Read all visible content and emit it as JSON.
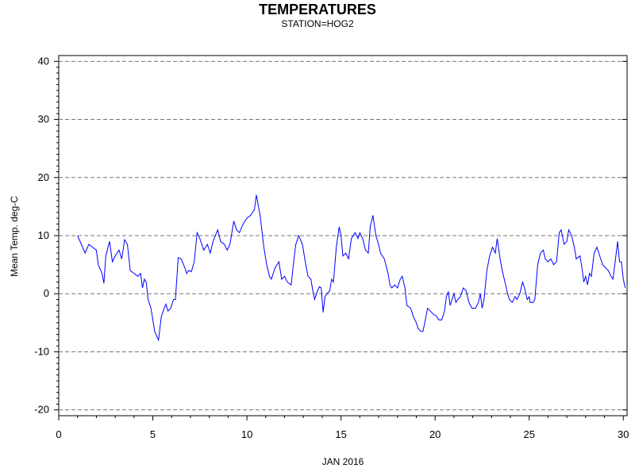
{
  "chart_data": {
    "type": "line",
    "title": "TEMPERATURES",
    "subtitle": "STATION=HOG2",
    "xlabel": "JAN 2016",
    "ylabel": "Mean Temp. deg-C",
    "xlim": [
      0,
      30.2
    ],
    "ylim": [
      -21,
      41
    ],
    "xticks": [
      0,
      5,
      10,
      15,
      20,
      25,
      30
    ],
    "yticks": [
      -20,
      -10,
      0,
      10,
      20,
      30,
      40
    ],
    "grid": "horizontal-dashed",
    "series": [
      {
        "color": "#0000ff",
        "points": [
          [
            1.0,
            10.0
          ],
          [
            1.2,
            8.5
          ],
          [
            1.4,
            7.0
          ],
          [
            1.6,
            8.5
          ],
          [
            1.8,
            8.0
          ],
          [
            2.0,
            7.5
          ],
          [
            2.1,
            5.0
          ],
          [
            2.3,
            3.5
          ],
          [
            2.4,
            1.8
          ],
          [
            2.5,
            6.5
          ],
          [
            2.7,
            9.0
          ],
          [
            2.85,
            5.5
          ],
          [
            3.0,
            6.5
          ],
          [
            3.2,
            7.5
          ],
          [
            3.35,
            6.0
          ],
          [
            3.5,
            9.3
          ],
          [
            3.65,
            8.5
          ],
          [
            3.8,
            4.0
          ],
          [
            4.0,
            3.5
          ],
          [
            4.2,
            3.0
          ],
          [
            4.35,
            3.5
          ],
          [
            4.45,
            1.0
          ],
          [
            4.55,
            2.5
          ],
          [
            4.65,
            2.0
          ],
          [
            4.75,
            -1.0
          ],
          [
            4.9,
            -2.5
          ],
          [
            5.1,
            -6.5
          ],
          [
            5.3,
            -8.0
          ],
          [
            5.45,
            -4.0
          ],
          [
            5.6,
            -2.5
          ],
          [
            5.7,
            -1.8
          ],
          [
            5.8,
            -3.0
          ],
          [
            5.95,
            -2.5
          ],
          [
            6.1,
            -1.0
          ],
          [
            6.2,
            -1.0
          ],
          [
            6.35,
            6.2
          ],
          [
            6.5,
            6.0
          ],
          [
            6.7,
            4.5
          ],
          [
            6.8,
            3.5
          ],
          [
            6.9,
            4.0
          ],
          [
            7.05,
            3.8
          ],
          [
            7.2,
            5.5
          ],
          [
            7.35,
            10.5
          ],
          [
            7.5,
            9.5
          ],
          [
            7.7,
            7.5
          ],
          [
            7.9,
            8.5
          ],
          [
            8.05,
            7.0
          ],
          [
            8.2,
            9.0
          ],
          [
            8.45,
            11.0
          ],
          [
            8.6,
            9.0
          ],
          [
            8.8,
            8.5
          ],
          [
            8.95,
            7.5
          ],
          [
            9.1,
            8.5
          ],
          [
            9.3,
            12.5
          ],
          [
            9.45,
            11.0
          ],
          [
            9.6,
            10.5
          ],
          [
            9.8,
            12.0
          ],
          [
            10.0,
            13.0
          ],
          [
            10.2,
            13.5
          ],
          [
            10.4,
            14.5
          ],
          [
            10.5,
            17.0
          ],
          [
            10.7,
            13.5
          ],
          [
            10.9,
            8.0
          ],
          [
            11.05,
            5.0
          ],
          [
            11.2,
            3.0
          ],
          [
            11.3,
            2.5
          ],
          [
            11.5,
            4.5
          ],
          [
            11.7,
            5.5
          ],
          [
            11.85,
            2.5
          ],
          [
            12.0,
            3.0
          ],
          [
            12.15,
            2.0
          ],
          [
            12.35,
            1.5
          ],
          [
            12.5,
            6.0
          ],
          [
            12.6,
            8.5
          ],
          [
            12.75,
            10.0
          ],
          [
            12.95,
            8.5
          ],
          [
            13.1,
            5.5
          ],
          [
            13.25,
            3.0
          ],
          [
            13.4,
            2.5
          ],
          [
            13.5,
            0.5
          ],
          [
            13.6,
            -1.0
          ],
          [
            13.75,
            0.5
          ],
          [
            13.85,
            1.2
          ],
          [
            13.95,
            1.0
          ],
          [
            14.05,
            -3.2
          ],
          [
            14.15,
            -0.5
          ],
          [
            14.25,
            0.0
          ],
          [
            14.4,
            0.5
          ],
          [
            14.5,
            2.5
          ],
          [
            14.6,
            2.0
          ],
          [
            14.75,
            8.0
          ],
          [
            14.9,
            11.5
          ],
          [
            15.0,
            10.0
          ],
          [
            15.1,
            6.5
          ],
          [
            15.25,
            7.0
          ],
          [
            15.4,
            6.0
          ],
          [
            15.55,
            9.5
          ],
          [
            15.75,
            10.5
          ],
          [
            15.9,
            9.5
          ],
          [
            16.0,
            10.5
          ],
          [
            16.15,
            9.5
          ],
          [
            16.3,
            7.5
          ],
          [
            16.45,
            7.0
          ],
          [
            16.55,
            11.5
          ],
          [
            16.7,
            13.5
          ],
          [
            16.85,
            10.0
          ],
          [
            16.95,
            9.0
          ],
          [
            17.1,
            7.0
          ],
          [
            17.3,
            6.0
          ],
          [
            17.5,
            3.5
          ],
          [
            17.6,
            1.5
          ],
          [
            17.7,
            1.0
          ],
          [
            17.85,
            1.5
          ],
          [
            18.0,
            1.0
          ],
          [
            18.15,
            2.5
          ],
          [
            18.25,
            3.0
          ],
          [
            18.4,
            1.0
          ],
          [
            18.5,
            -2.0
          ],
          [
            18.7,
            -2.5
          ],
          [
            18.85,
            -4.0
          ],
          [
            19.0,
            -5.0
          ],
          [
            19.1,
            -6.0
          ],
          [
            19.25,
            -6.5
          ],
          [
            19.35,
            -6.5
          ],
          [
            19.45,
            -5.0
          ],
          [
            19.6,
            -2.5
          ],
          [
            19.75,
            -3.0
          ],
          [
            19.9,
            -3.5
          ],
          [
            20.05,
            -3.8
          ],
          [
            20.2,
            -4.5
          ],
          [
            20.35,
            -4.5
          ],
          [
            20.5,
            -3.0
          ],
          [
            20.6,
            -0.5
          ],
          [
            20.7,
            0.3
          ],
          [
            20.8,
            -2.0
          ],
          [
            20.9,
            -1.0
          ],
          [
            21.0,
            0.0
          ],
          [
            21.1,
            -1.5
          ],
          [
            21.2,
            -1.0
          ],
          [
            21.35,
            -0.5
          ],
          [
            21.5,
            1.0
          ],
          [
            21.65,
            0.5
          ],
          [
            21.8,
            -1.5
          ],
          [
            21.95,
            -2.5
          ],
          [
            22.15,
            -2.5
          ],
          [
            22.3,
            -1.5
          ],
          [
            22.4,
            0.0
          ],
          [
            22.5,
            -2.5
          ],
          [
            22.6,
            -1.0
          ],
          [
            22.75,
            4.0
          ],
          [
            22.9,
            6.5
          ],
          [
            23.05,
            8.0
          ],
          [
            23.2,
            7.0
          ],
          [
            23.3,
            9.5
          ],
          [
            23.45,
            6.0
          ],
          [
            23.6,
            3.5
          ],
          [
            23.75,
            1.5
          ],
          [
            23.85,
            0.0
          ],
          [
            23.95,
            -1.0
          ],
          [
            24.1,
            -1.5
          ],
          [
            24.25,
            -0.5
          ],
          [
            24.35,
            -1.0
          ],
          [
            24.5,
            0.0
          ],
          [
            24.65,
            2.0
          ],
          [
            24.75,
            1.0
          ],
          [
            24.9,
            -1.0
          ],
          [
            25.0,
            -0.5
          ],
          [
            25.05,
            -1.5
          ],
          [
            25.2,
            -1.5
          ],
          [
            25.3,
            -1.0
          ],
          [
            25.45,
            5.0
          ],
          [
            25.6,
            7.0
          ],
          [
            25.75,
            7.5
          ],
          [
            25.85,
            6.0
          ],
          [
            26.0,
            5.5
          ],
          [
            26.15,
            6.0
          ],
          [
            26.3,
            5.0
          ],
          [
            26.45,
            5.5
          ],
          [
            26.6,
            10.5
          ],
          [
            26.7,
            11.0
          ],
          [
            26.85,
            8.5
          ],
          [
            27.0,
            9.0
          ],
          [
            27.1,
            11.0
          ],
          [
            27.25,
            10.0
          ],
          [
            27.4,
            8.0
          ],
          [
            27.5,
            6.0
          ],
          [
            27.7,
            6.5
          ],
          [
            27.8,
            4.5
          ],
          [
            27.9,
            2.0
          ],
          [
            28.0,
            3.0
          ],
          [
            28.1,
            1.5
          ],
          [
            28.2,
            3.5
          ],
          [
            28.3,
            3.0
          ],
          [
            28.45,
            7.0
          ],
          [
            28.6,
            8.0
          ],
          [
            28.75,
            6.5
          ],
          [
            28.9,
            5.0
          ],
          [
            29.05,
            4.5
          ],
          [
            29.2,
            4.0
          ],
          [
            29.35,
            3.0
          ],
          [
            29.45,
            2.5
          ],
          [
            29.55,
            5.0
          ],
          [
            29.7,
            9.0
          ],
          [
            29.8,
            5.5
          ],
          [
            29.9,
            5.5
          ],
          [
            30.0,
            2.5
          ],
          [
            30.1,
            1.0
          ]
        ]
      }
    ]
  }
}
